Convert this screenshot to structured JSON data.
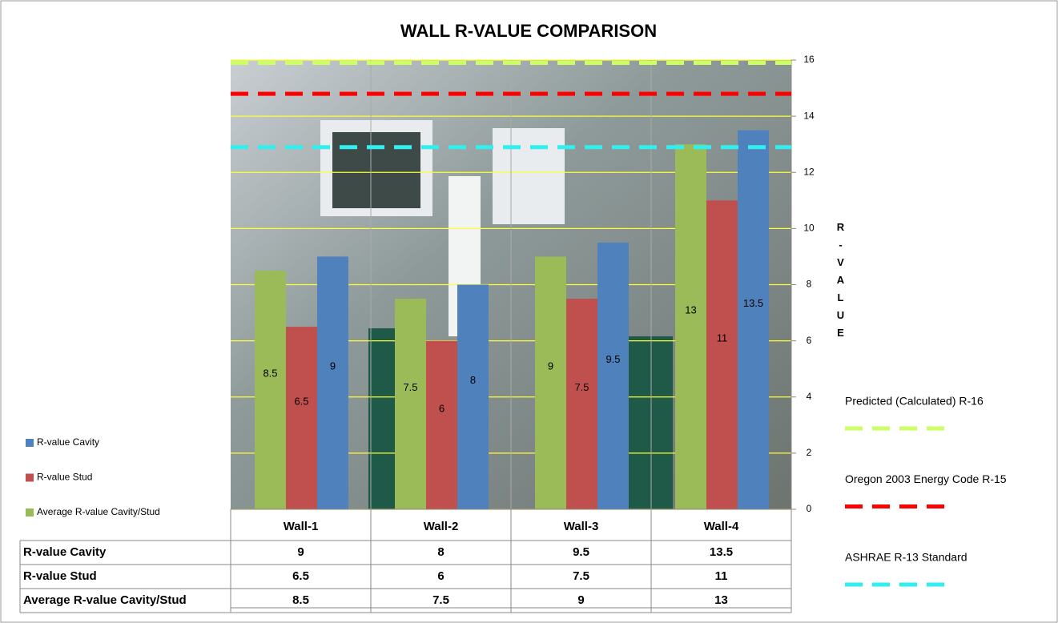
{
  "chart_data": {
    "type": "bar",
    "title": "WALL R-VALUE COMPARISON",
    "y_label": "R-VALUE",
    "categories": [
      "Wall-1",
      "Wall-2",
      "Wall-3",
      "Wall-4"
    ],
    "series": [
      {
        "name": "R-value Cavity",
        "color": "#4f81bd",
        "values": [
          9,
          8,
          9.5,
          13.5
        ]
      },
      {
        "name": "R-value Stud",
        "color": "#c0504d",
        "values": [
          6.5,
          6,
          7.5,
          11
        ]
      },
      {
        "name": "Average R-value Cavity/Stud",
        "color": "#9bbb59",
        "values": [
          8.5,
          7.5,
          9,
          13
        ]
      }
    ],
    "ylim": [
      0,
      16
    ],
    "yticks": [
      0,
      2,
      4,
      6,
      8,
      10,
      12,
      14,
      16
    ],
    "grid": true,
    "grid_color": "#ffff33",
    "reference_lines": [
      {
        "name": "Predicted  (Calculated) R-16",
        "value": 15.9,
        "color": "#ccff66"
      },
      {
        "name": "Oregon  2003 Energy Code R-15",
        "value": 14.8,
        "color": "#ff0000"
      },
      {
        "name": "ASHRAE  R-13 Standard",
        "value": 12.9,
        "color": "#33eeee"
      }
    ],
    "legend": "bottom-left"
  }
}
